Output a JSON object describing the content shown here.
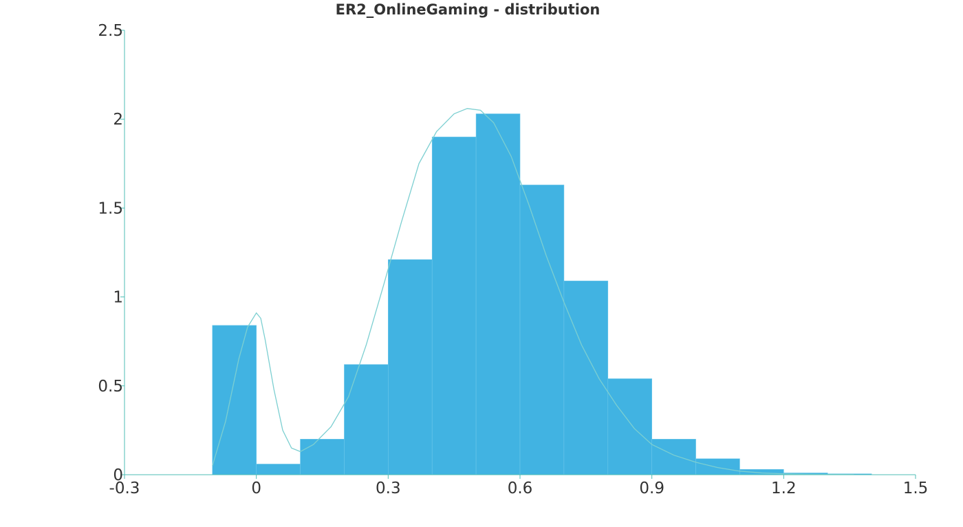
{
  "chart_data": {
    "type": "bar",
    "title": "ER2_OnlineGaming - distribution",
    "xlabel": "",
    "ylabel": "",
    "xlim": [
      -0.3,
      1.5
    ],
    "ylim": [
      0,
      2.5
    ],
    "x_ticks": [
      -0.3,
      0,
      0.3,
      0.6,
      0.9,
      1.2,
      1.5
    ],
    "x_tick_labels": [
      "-0.3",
      "0",
      "0.3",
      "0.6",
      "0.9",
      "1.2",
      "1.5"
    ],
    "y_ticks": [
      0,
      0.5,
      1,
      1.5,
      2,
      2.5
    ],
    "y_tick_labels": [
      "0",
      "0.5",
      "1",
      "1.5",
      "2",
      "2.5"
    ],
    "grid": false,
    "colors": {
      "bar": "#41b3e2",
      "bar_edge": "#6cc7ea",
      "kde": "#7ccfd1",
      "axis": "#4dbdb5"
    },
    "histogram": {
      "bin_edges": [
        -0.1,
        -0.0,
        0.1,
        0.2,
        0.3,
        0.4,
        0.5,
        0.6,
        0.7,
        0.8,
        0.9,
        1.0,
        1.1,
        1.2,
        1.3,
        1.4
      ],
      "values": [
        0.84,
        0.06,
        0.2,
        0.62,
        1.21,
        1.9,
        2.03,
        1.63,
        1.09,
        0.54,
        0.2,
        0.09,
        0.03,
        0.01,
        0.005
      ]
    },
    "density_curve": {
      "x": [
        -0.1,
        -0.07,
        -0.04,
        -0.02,
        0.0,
        0.01,
        0.02,
        0.04,
        0.06,
        0.08,
        0.1,
        0.13,
        0.17,
        0.21,
        0.25,
        0.29,
        0.33,
        0.37,
        0.41,
        0.45,
        0.48,
        0.51,
        0.54,
        0.58,
        0.62,
        0.66,
        0.7,
        0.74,
        0.78,
        0.82,
        0.86,
        0.9,
        0.95,
        1.0,
        1.05,
        1.1,
        1.15,
        1.2,
        1.25,
        1.3,
        1.36
      ],
      "y": [
        0.05,
        0.3,
        0.65,
        0.83,
        0.91,
        0.88,
        0.76,
        0.48,
        0.25,
        0.15,
        0.13,
        0.17,
        0.27,
        0.44,
        0.73,
        1.07,
        1.42,
        1.75,
        1.93,
        2.03,
        2.06,
        2.05,
        1.98,
        1.79,
        1.52,
        1.23,
        0.97,
        0.73,
        0.54,
        0.39,
        0.26,
        0.17,
        0.11,
        0.07,
        0.04,
        0.02,
        0.01,
        0.005,
        0.003,
        0.002,
        0.001
      ]
    }
  }
}
